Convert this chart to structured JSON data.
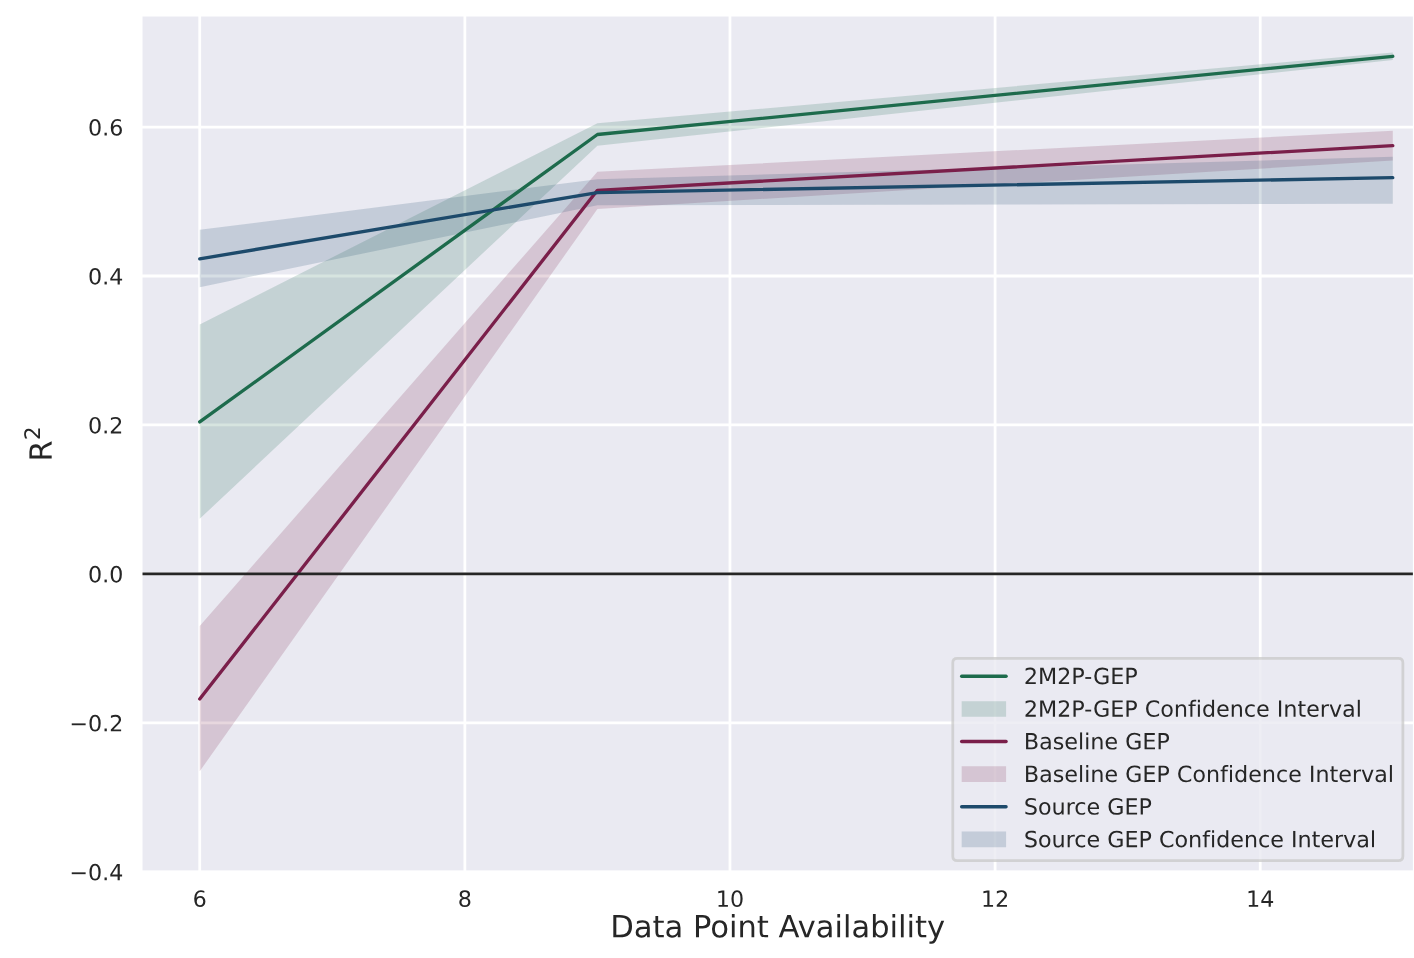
{
  "chart_data": {
    "type": "line",
    "xlabel": "Data Point Availability",
    "ylabel": "R$^{2}$",
    "xlim": [
      5.56,
      15.16
    ],
    "ylim": [
      -0.4,
      0.75
    ],
    "xticks": [
      6,
      8,
      10,
      12,
      14
    ],
    "yticks": [
      {
        "value": -0.4,
        "label": "−0.4"
      },
      {
        "value": -0.2,
        "label": "−0.2"
      },
      {
        "value": 0,
        "label": "0.0"
      },
      0.2,
      0.4,
      0.6
    ],
    "grid": true,
    "legend": "bottom right",
    "ref_lines": [
      {
        "axis": "y",
        "value": 0,
        "color": "#262626"
      }
    ],
    "series": [
      {
        "name": "2M2P-GEP",
        "color": "#1d6b4c",
        "x": [
          6,
          9,
          15
        ],
        "values": [
          0.204,
          0.59,
          0.695
        ]
      },
      {
        "name": "2M2P-GEP Confidence Interval",
        "type": "area",
        "color": "#1d6b4c",
        "x": [
          6,
          9,
          15
        ],
        "values": [
          null,
          null,
          null
        ],
        "lower": [
          0.074,
          0.575,
          0.69
        ],
        "upper": [
          0.335,
          0.605,
          0.7
        ]
      },
      {
        "name": "Baseline GEP",
        "color": "#7a1f4a",
        "x": [
          6,
          9,
          15
        ],
        "values": [
          -0.168,
          0.515,
          0.575
        ]
      },
      {
        "name": "Baseline GEP Confidence Interval",
        "type": "area",
        "color": "#7a1f4a",
        "x": [
          6,
          9,
          15
        ],
        "values": [
          null,
          null,
          null
        ],
        "lower": [
          -0.265,
          0.49,
          0.555
        ],
        "upper": [
          -0.07,
          0.54,
          0.595
        ]
      },
      {
        "name": "Source GEP",
        "color": "#1d4a6b",
        "x": [
          6,
          9,
          15
        ],
        "values": [
          0.423,
          0.512,
          0.532
        ]
      },
      {
        "name": "Source GEP Confidence Interval",
        "type": "area",
        "color": "#1d4a6b",
        "x": [
          6,
          9,
          15
        ],
        "values": [
          null,
          null,
          null
        ],
        "lower": [
          0.385,
          0.495,
          0.497
        ],
        "upper": [
          0.462,
          0.53,
          0.56
        ]
      }
    ]
  }
}
